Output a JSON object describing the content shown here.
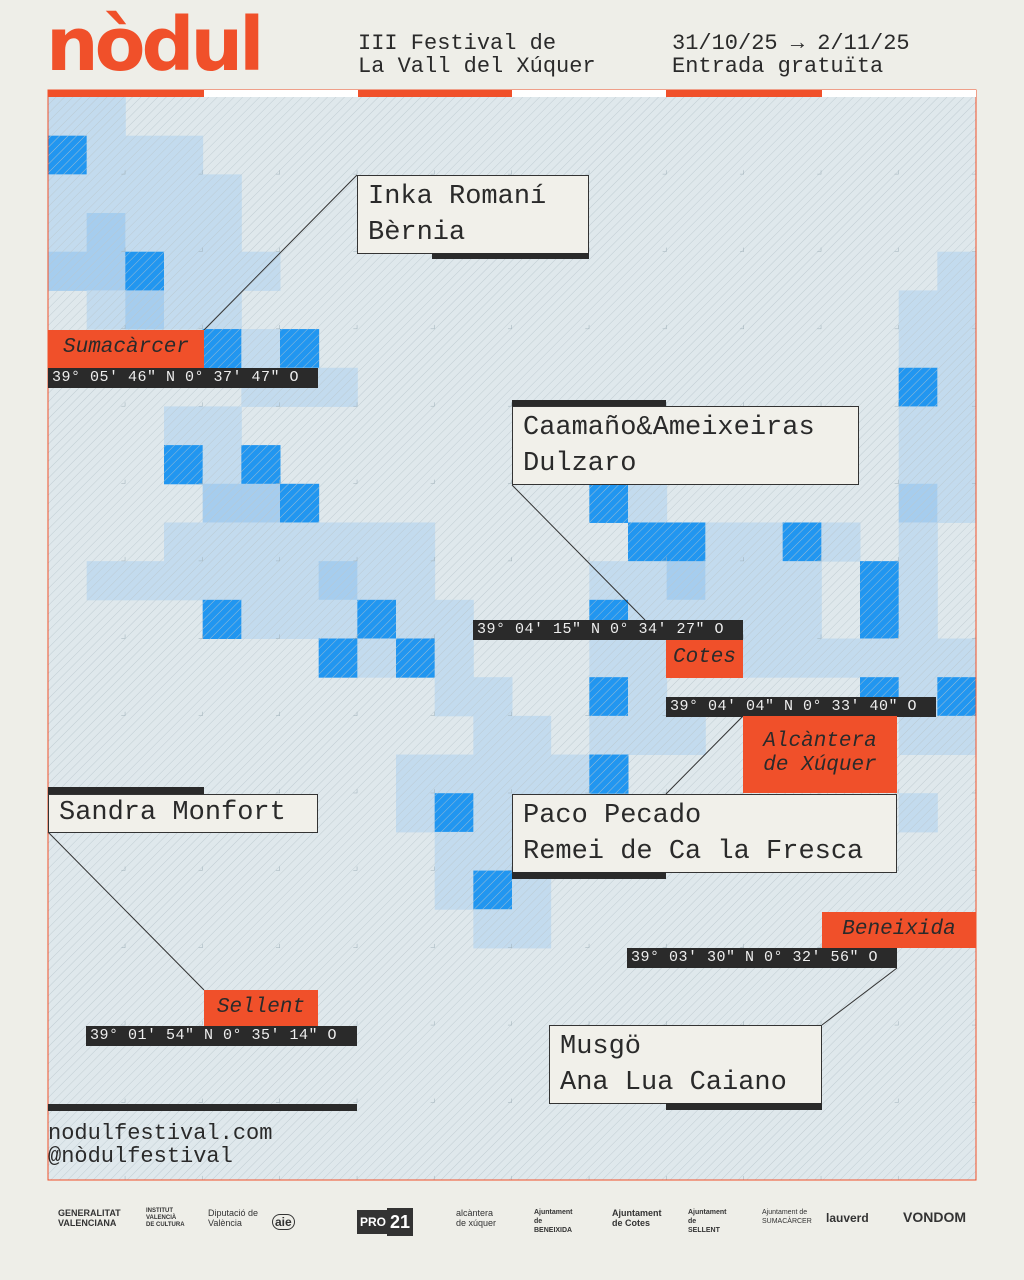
{
  "header": {
    "logo": "nòdul",
    "festival": [
      "III Festival de",
      "La Vall del Xúquer"
    ],
    "dates": [
      "31/10/25 → 2/11/25",
      "Entrada gratuïta"
    ]
  },
  "locations": [
    {
      "name": "Sumacàrcer",
      "coords": "39° 05′ 46″ N 0° 37′ 47″ O",
      "artists": [
        "Inka Romaní",
        "Bèrnia"
      ]
    },
    {
      "name": "Cotes",
      "coords": "39° 04′ 15″ N 0° 34′ 27″ O",
      "artists": [
        "Caamaño&Ameixeiras",
        "Dulzaro"
      ]
    },
    {
      "name": "Alcàntera de Xúquer",
      "coords": "39° 04′ 04″ N 0° 33′ 40″ O",
      "artists": [
        "Paco Pecado",
        "Remei de Ca la Fresca"
      ]
    },
    {
      "name": "Sellent",
      "coords": "39° 01′ 54″ N 0° 35′ 14″ O",
      "artists": [
        "Sandra Monfort"
      ]
    },
    {
      "name": "Beneixida",
      "coords": "39° 03′ 30″ N 0° 32′ 56″ O",
      "artists": [
        "Musgö",
        "Ana Lua Caiano"
      ]
    }
  ],
  "footer": {
    "web": "nodulfestival.com",
    "social": "@nòdulfestival"
  },
  "sponsors": [
    "GENERALITAT VALENCIANA",
    "INSTITUT VALENCIÀ DE CULTURA",
    "Diputació de València",
    "aie",
    "PRO",
    "21",
    "alcàntera de xúquer",
    "Ajuntament de BENEIXIDA",
    "Ajuntament de Cotes",
    "Ajuntament de SELLENT",
    "Ajuntament de SUMACÀRCER",
    "lauverd",
    "VONDOM"
  ]
}
